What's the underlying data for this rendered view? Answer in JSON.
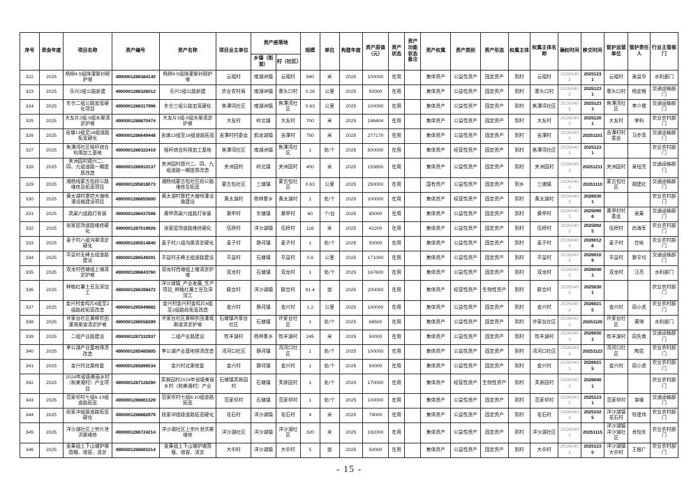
{
  "page": {
    "footer_page_number": "- 15 -"
  },
  "table": {
    "location_group_label": "资产座落地",
    "columns": [
      {
        "key": "no",
        "label": "序号",
        "width": 3.0
      },
      {
        "key": "fund_year",
        "label": "资金年度",
        "width": 3.7
      },
      {
        "key": "project_name",
        "label": "项目名称",
        "width": 7.5
      },
      {
        "key": "asset_no",
        "label": "资产编号",
        "width": 7.3
      },
      {
        "key": "asset_name",
        "label": "资产名称",
        "width": 8.8
      },
      {
        "key": "owner_unit",
        "label": "项目业主单位",
        "width": 5.4
      },
      {
        "key": "town",
        "label": "乡镇（街道）",
        "width": 3.8,
        "group": "location"
      },
      {
        "key": "village",
        "label": "村（社区）",
        "width": 3.8,
        "group": "location"
      },
      {
        "key": "scale",
        "label": "规模",
        "width": 3.0
      },
      {
        "key": "unit",
        "label": "单位",
        "width": 3.0
      },
      {
        "key": "build_year",
        "label": "构建年度",
        "width": 3.6
      },
      {
        "key": "orig_value",
        "label": "资产原值（元）",
        "width": 4.0
      },
      {
        "key": "status",
        "label": "资产状态",
        "width": 2.5
      },
      {
        "key": "func_note",
        "label": "资产功能状态备注",
        "width": 2.5
      },
      {
        "key": "ownership",
        "label": "资产权属",
        "width": 4.6
      },
      {
        "key": "category",
        "label": "资产类别",
        "width": 4.6
      },
      {
        "key": "form",
        "label": "资产形态",
        "width": 4.3
      },
      {
        "key": "subject",
        "label": "权属主体",
        "width": 3.4
      },
      {
        "key": "subject_name",
        "label": "权属主体名称",
        "width": 4.3
      },
      {
        "key": "confirm_time",
        "label": "确权时间",
        "width": 3.5
      },
      {
        "key": "transfer_time",
        "label": "移交时间",
        "width": 3.6
      },
      {
        "key": "mgmt_unit",
        "label": "管护运营单位",
        "width": 3.7
      },
      {
        "key": "person",
        "label": "管护责任人",
        "width": 3.4
      },
      {
        "key": "dept",
        "label": "行业主管部门",
        "width": 4.3
      }
    ],
    "rows": [
      [
        "322",
        "2025",
        "杨柳4.5组排灌渠衬砌护坡",
        "4900001286384140",
        "杨柳4.5组排灌渠衬砌护坡",
        "云福村",
        "南湖洲镇",
        "云福村",
        "580",
        "米",
        "2025",
        "100000",
        "在用",
        "",
        "集体资产",
        "公益性资产",
        "固定资产",
        "到村",
        "云福村",
        "20260403",
        "20251231",
        "云福村",
        "吴益华",
        "水利部门"
      ],
      [
        "323",
        "2025",
        "乐兴2组公路新建",
        "4900001286326012",
        "乐兴2组公路新建",
        "农业农村局",
        "南湖洲镇",
        "寨头口村",
        "0.28",
        "公里",
        "2025",
        "50000",
        "在用",
        "",
        "集体资产",
        "公益性资产",
        "固定资产",
        "到村",
        "寨头口村",
        "20260403",
        "20251231",
        "寨头口村",
        "杨定根",
        "交通运输部门"
      ],
      [
        "324",
        "2025",
        "东仓二组公路加宽硬化项目",
        "4900001286317996",
        "东仓三组公路加宽硬化",
        "焦潭湾社区",
        "南湖洲镇",
        "焦潭湾社区",
        "0.63",
        "公里",
        "2025",
        "100000",
        "在用",
        "",
        "集体资产",
        "公益性资产",
        "固定资产",
        "到村",
        "焦潭湾社区",
        "20260403",
        "20251231",
        "焦潭湾社区",
        "李介儒",
        "交通运输部门"
      ],
      [
        "325",
        "2025",
        "大友片2组-5组水渠清淤护坡",
        "4900001286870474",
        "大友片2组-5组水渠清淤护坡",
        "大友村",
        "岭北镇",
        "大友村",
        "700",
        "米",
        "2025",
        "186404",
        "在用",
        "",
        "集体资产",
        "公益性资产",
        "固定资产",
        "到村",
        "大友村",
        "20260403",
        "20251201",
        "大友村",
        "李科",
        "农业农村部门"
      ],
      [
        "326",
        "2025",
        "吉塘13组至16组道路拓宽硬化",
        "4900001286649448",
        "吉塘13组至16组道路拓宽",
        "吉潭村村委会",
        "鹤龙湖镇",
        "吉潭村",
        "750",
        "米",
        "2025",
        "277170",
        "在用",
        "",
        "集体资产",
        "公益性资产",
        "固定资产",
        "到村",
        "吉潭村",
        "20260403",
        "20251101",
        "吉潭村村委会",
        "马步高",
        "交通运输部门"
      ],
      [
        "327",
        "2025",
        "焦潭湾社区秸秆综合利用加工基地",
        "4900001286322419",
        "秸秆综合利用加工基地",
        "焦潭湾社区",
        "南湖洲镇",
        "焦潭湾社区",
        "1",
        "处/个",
        "2025",
        "500000",
        "在用",
        "",
        "集体资产",
        "经营性资产",
        "固定资产",
        "到村",
        "焦潭湾社区",
        "20260403",
        "20251231",
        "",
        "",
        "农业农村部门"
      ],
      [
        "328",
        "2025",
        "夹洲园村德兴二、四、九组道路一期提质改造",
        "4900001286910137",
        "夹洲园村德兴二、四、九组道路一期提质改造",
        "夹洲园村",
        "岭北镇",
        "夹洲园村",
        "400",
        "米",
        "2025",
        "153850",
        "在用",
        "",
        "集体资产",
        "公益性资产",
        "固定资产",
        "到村",
        "夹洲园村",
        "20260403",
        "20251211",
        "夹洲园村",
        "吴恒亮",
        "交通运输部门"
      ],
      [
        "329",
        "2025",
        "湘杨线蒙古包段公路维修及拓宽项目",
        "4900001285818073",
        "湘杨线蒙古包社区段公路维修及拓宽",
        "蒙古包社区",
        "三塘镇",
        "蒙古包社区",
        "0.63",
        "公里",
        "2025",
        "250000",
        "在用",
        "",
        "国有资产",
        "公益性资产",
        "固定资产",
        "到乡",
        "三塘镇",
        "20260403",
        "20251110",
        "蒙古包社区",
        "胡建红",
        "交通运输部门"
      ],
      [
        "330",
        "2025",
        "黄太湖村寨荭大塘喷灌设施建设项目",
        "4900001286855600",
        "黄太湖村寨荭大塘喷灌设施建设",
        "黄太湖村",
        "杨林寨乡",
        "黄太湖村",
        "1",
        "处/个",
        "2025",
        "200000",
        "在用",
        "",
        "集体资产",
        "经营性资产",
        "固定资产",
        "到村",
        "黄太湖村",
        "20260403",
        "20260301",
        "",
        "",
        "农业农村部门"
      ],
      [
        "331",
        "2025",
        "高粱六组路灯安装",
        "4900001286437598",
        "黄甲高粱六组路灯安装",
        "黄甲村",
        "东塘镇",
        "黄甲村",
        "60",
        "个/台",
        "2025",
        "80000",
        "在用",
        "",
        "集体资产",
        "公益性资产",
        "固定资产",
        "到村",
        "黄甲村",
        "20260403",
        "20250908",
        "黄甲村村委会",
        "吴果",
        "交通运输部门"
      ],
      [
        "332",
        "2025",
        "张家屋场道路维修硬化",
        "4900001287019926",
        "张家屋场道路维修硬化",
        "伍桥村",
        "洋沙湖镇",
        "伍桥村",
        "116",
        "米",
        "2025",
        "42200",
        "在用",
        "",
        "集体资产",
        "公益性资产",
        "固定资产",
        "到村",
        "伍桥村",
        "20260403",
        "20250925",
        "伍桥村",
        "尚海军",
        "农业农村部门"
      ],
      [
        "333",
        "2025",
        "麦子村八组沟渠清淤硬化",
        "4900001285514840",
        "麦子村八组沟渠清淤硬化",
        "麦子村",
        "静河镇",
        "麦子村",
        "1",
        "处/个",
        "2025",
        "50000",
        "在用",
        "",
        "集体资产",
        "公益性资产",
        "固定资产",
        "到村",
        "麦子村",
        "20260403",
        "20260126",
        "麦子村",
        "甘咏",
        "农业农村部门"
      ],
      [
        "334",
        "2025",
        "平益村无峰五组道路建设",
        "4900001286549291",
        "平益村无峰五组道路建设",
        "平益村",
        "石塘镇",
        "平益村",
        "0.6",
        "公里",
        "2025",
        "171000",
        "在用",
        "",
        "集体资产",
        "公益性资产",
        "固定资产",
        "到村",
        "平益村",
        "20260403",
        "20260109",
        "平益村",
        "黎平均",
        "交通运输部门"
      ],
      [
        "335",
        "2025",
        "双龙村西塘组上塘清淤护坡",
        "4900001286843760",
        "双龙村西塘组上塘清淤护坡",
        "双龙村",
        "石塘镇",
        "双龙村",
        "1",
        "处/个",
        "2025",
        "167800",
        "在用",
        "",
        "集体资产",
        "公益性资产",
        "固定资产",
        "到村",
        "双龙村",
        "20260403",
        "20260401",
        "双龙村",
        "汪亮",
        "水利部门"
      ],
      [
        "336",
        "2025",
        "种植红薯土豆及深加工",
        "4900001286398472",
        "洋沙湖镇_产业发展_生产项目_种植红薯土豆及深加工",
        "联合村",
        "洋沙湖镇",
        "联合村",
        "91.4",
        "亩",
        "2025",
        "200000",
        "在用",
        "",
        "集体资产",
        "经营性资产",
        "生物性资产",
        "到村",
        "联合村",
        "20260403",
        "20250301",
        "",
        "",
        "农业农村部门"
      ],
      [
        "337",
        "2025",
        "金兴村金鸡片4组至2组路段拓宽改造",
        "4900001285949882",
        "金兴村金兴村金鸡片4组至2组路段拓宽改造",
        "金兴村",
        "静河镇",
        "金兴村",
        "1.2",
        "公里",
        "2025",
        "100000",
        "在用",
        "",
        "集体资产",
        "公益性资产",
        "固定资产",
        "到村",
        "金兴村",
        "20260403",
        "20260215",
        "金兴村",
        "周小虎",
        "农业农村部门"
      ],
      [
        "338",
        "2025",
        "许家台社区黄柳农田灌溉渠道清淤护坡",
        "4900001286558299",
        "许家台社区黄柳农田灌溉渠道清淤护坡",
        "石塘镇许家台社区",
        "石塘镇",
        "许家台社区",
        "1",
        "处/个",
        "2025",
        "68500",
        "在用",
        "",
        "集体资产",
        "公益性资产",
        "固定资产",
        "到村",
        "许家台社区",
        "20260403",
        "20251120",
        "许家台社区",
        "黄琦",
        "水利部门"
      ],
      [
        "339",
        "2025",
        "二组产业路建设",
        "4900001287332937",
        "二组产业路建设",
        "牧羊湖村",
        "杨林寨乡",
        "牧羊湖村",
        "245",
        "米",
        "2025",
        "50000",
        "在用",
        "",
        "集体资产",
        "公益性资产",
        "固定资产",
        "到村",
        "牧羊湖村",
        "20260403",
        "20260301",
        "牧羊湖村",
        "周先南",
        "交通运输部门"
      ],
      [
        "340",
        "2025",
        "李公湖产业基地排渍改造",
        "4900001285485805",
        "李公湖产业基地排渍改造",
        "湾河口社区",
        "静河镇",
        "湾河口社区",
        "1",
        "处/个",
        "2025",
        "100000",
        "在用",
        "",
        "集体资产",
        "公益性资产",
        "固定资产",
        "到村",
        "湾河口社区",
        "20260403",
        "20251123",
        "湾河口社区",
        "陶昆",
        "农业农村部门"
      ],
      [
        "341",
        "2025",
        "金兴村北渠修复",
        "4900001285896534",
        "金兴村北渠修复",
        "金兴村",
        "静河镇",
        "金兴村",
        "1",
        "处/个",
        "2025",
        "50000",
        "在用",
        "",
        "集体资产",
        "公益性资产",
        "固定资产",
        "到村",
        "金兴村",
        "20260403",
        "20260215",
        "金兴村",
        "周小虎",
        "农业农村部门"
      ],
      [
        "342",
        "2025",
        "2024年省级美丽乡村（和美湘村）产业项目",
        "4900001287126290",
        "芙蓉园村2024年省级美丽乡村（和美湘村）产业",
        "石塘镇芙蓉园村",
        "石塘镇",
        "芙蓉园村",
        "1",
        "处/个",
        "2025",
        "170000",
        "在用",
        "",
        "集体资产",
        "经营性资产",
        "生物性资产",
        "到村",
        "芙蓉园村",
        "20260403",
        "20260401",
        "",
        "",
        "农业农村部门"
      ],
      [
        "343",
        "2025",
        "范家坝村七组6-10组道路拓宽",
        "4900001286861329",
        "范家坝村七组6-10组道路拓宽",
        "范家坝村",
        "石塘镇",
        "范家坝村",
        "1",
        "处/个",
        "2025",
        "100000",
        "在用",
        "",
        "集体资产",
        "公益性资产",
        "固定资产",
        "到村",
        "范家坝村",
        "20260403",
        "20251231",
        "范家坝村",
        "单维",
        "交通运输部门"
      ],
      [
        "344",
        "2025",
        "段家冲组级道路拓宽硬化",
        "4900001286882979",
        "段家冲组级道路拓宽硬化",
        "花石村",
        "洋沙湖镇",
        "花石村",
        "4",
        "米",
        "2025",
        "79000",
        "在用",
        "",
        "集体资产",
        "公益性资产",
        "固定资产",
        "到村",
        "花石村",
        "20260403",
        "20251025",
        "洋沙湖镇花石村",
        "符建伟",
        "农业农村部门"
      ],
      [
        "345",
        "2025",
        "洋沙湖社区上宗片泄洪渠维修",
        "4900001286724214",
        "洋沙湖社区上宗片泄洪渠维修",
        "洋沙湖社区",
        "洋沙湖镇",
        "洋沙湖社区",
        "320",
        "米",
        "2025",
        "192000",
        "在用",
        "",
        "集体资产",
        "公益性资产",
        "固定资产",
        "到村",
        "洋沙湖社区",
        "20260403",
        "20251115",
        "洋沙湖镇洋沙湖社区",
        "肖怡东",
        "农业农村部门"
      ],
      [
        "346",
        "2025",
        "金果组上下山塘护坡围堰、增容、清淤",
        "4900001286891014",
        "金果组上下山塘护坡围堰、增容、清淤",
        "大中村",
        "洋沙湖镇",
        "大中村",
        "5",
        "亩",
        "2025",
        "50000",
        "在用",
        "",
        "集体资产",
        "公益性资产",
        "固定资产",
        "到村",
        "大中村",
        "20260403",
        "20251230",
        "洋沙湖镇大中村",
        "王银广",
        "农业农村部门"
      ]
    ]
  }
}
